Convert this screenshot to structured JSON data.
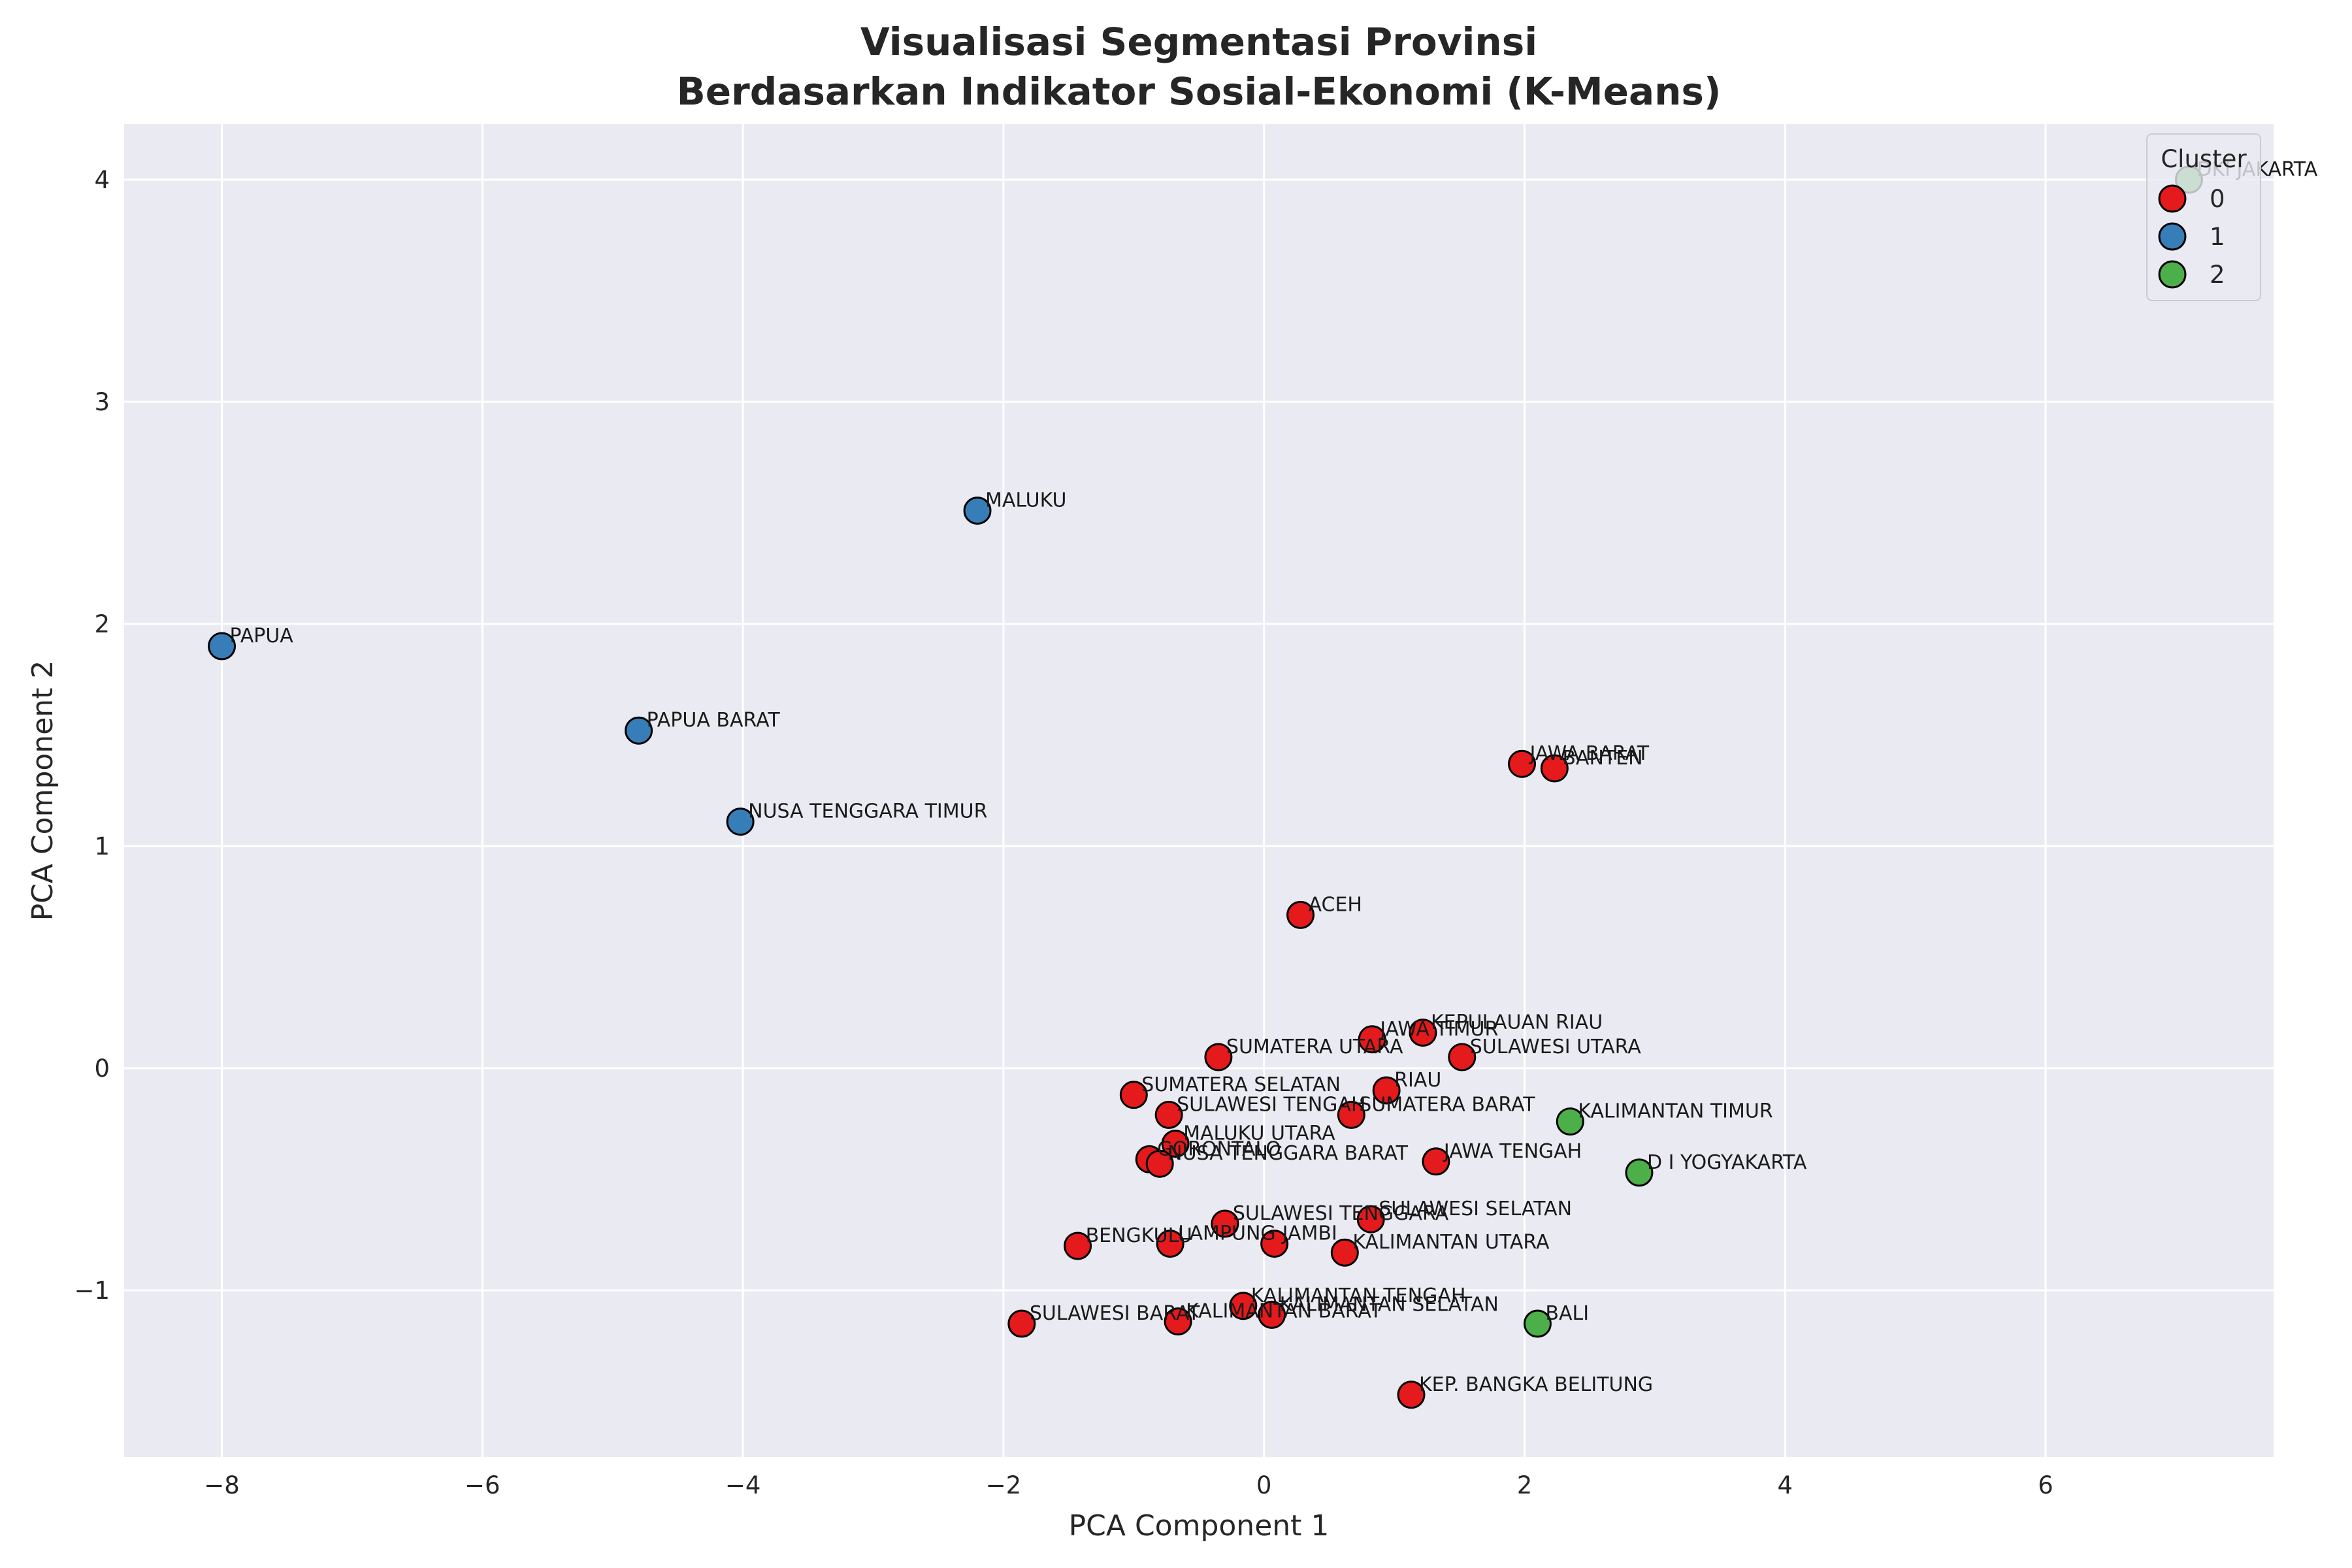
{
  "chart_data": {
    "type": "scatter",
    "title_lines": [
      "Visualisasi Segmentasi Provinsi",
      "Berdasarkan Indikator Sosial-Ekonomi (K-Means)"
    ],
    "xlabel": "PCA Component 1",
    "ylabel": "PCA Component 2",
    "xlim": [
      -8.75,
      7.75
    ],
    "ylim": [
      -1.75,
      4.25
    ],
    "xticks": [
      -8,
      -6,
      -4,
      -2,
      0,
      2,
      4,
      6
    ],
    "yticks": [
      -1,
      0,
      1,
      2,
      3,
      4
    ],
    "xtick_labels": [
      "−8",
      "−6",
      "−4",
      "−2",
      "0",
      "2",
      "4",
      "6"
    ],
    "ytick_labels": [
      "−1",
      "0",
      "1",
      "2",
      "3",
      "4"
    ],
    "grid": true,
    "legend": {
      "title": "Cluster",
      "position": "top-right",
      "entries": [
        {
          "label": "0",
          "color": "#e41a1c"
        },
        {
          "label": "1",
          "color": "#377eb8"
        },
        {
          "label": "2",
          "color": "#4daf4a"
        }
      ]
    },
    "colors": {
      "0": "#e41a1c",
      "1": "#377eb8",
      "2": "#4daf4a",
      "background": "#eaeaf2",
      "grid": "#ffffff"
    },
    "points": [
      {
        "label": "DKI JAKARTA",
        "x": 7.1,
        "y": 4.0,
        "cluster": 2
      },
      {
        "label": "MALUKU",
        "x": -2.2,
        "y": 2.51,
        "cluster": 1
      },
      {
        "label": "PAPUA",
        "x": -8.0,
        "y": 1.9,
        "cluster": 1
      },
      {
        "label": "PAPUA BARAT",
        "x": -4.8,
        "y": 1.52,
        "cluster": 1
      },
      {
        "label": "NUSA TENGGARA TIMUR",
        "x": -4.02,
        "y": 1.11,
        "cluster": 1
      },
      {
        "label": "JAWA BARAT",
        "x": 1.98,
        "y": 1.37,
        "cluster": 0
      },
      {
        "label": "BANTEN",
        "x": 2.23,
        "y": 1.35,
        "cluster": 0
      },
      {
        "label": "ACEH",
        "x": 0.28,
        "y": 0.69,
        "cluster": 0
      },
      {
        "label": "JAWA TIMUR",
        "x": 0.83,
        "y": 0.13,
        "cluster": 0
      },
      {
        "label": "KEPULAUAN RIAU",
        "x": 1.22,
        "y": 0.16,
        "cluster": 0
      },
      {
        "label": "SULAWESI UTARA",
        "x": 1.52,
        "y": 0.05,
        "cluster": 0
      },
      {
        "label": "SUMATERA UTARA",
        "x": -0.35,
        "y": 0.05,
        "cluster": 0
      },
      {
        "label": "SUMATERA SELATAN",
        "x": -1.0,
        "y": -0.12,
        "cluster": 0
      },
      {
        "label": "RIAU",
        "x": 0.94,
        "y": -0.1,
        "cluster": 0
      },
      {
        "label": "SULAWESI TENGAH",
        "x": -0.73,
        "y": -0.21,
        "cluster": 0
      },
      {
        "label": "SUMATERA BARAT",
        "x": 0.67,
        "y": -0.21,
        "cluster": 0
      },
      {
        "label": "KALIMANTAN TIMUR",
        "x": 2.35,
        "y": -0.24,
        "cluster": 2
      },
      {
        "label": "MALUKU UTARA",
        "x": -0.68,
        "y": -0.34,
        "cluster": 0
      },
      {
        "label": "GORONTALO",
        "x": -0.88,
        "y": -0.41,
        "cluster": 0
      },
      {
        "label": "NUSA TENGGARA BARAT",
        "x": -0.8,
        "y": -0.43,
        "cluster": 0
      },
      {
        "label": "JAWA TENGAH",
        "x": 1.32,
        "y": -0.42,
        "cluster": 0
      },
      {
        "label": "D I YOGYAKARTA",
        "x": 2.88,
        "y": -0.47,
        "cluster": 2
      },
      {
        "label": "SULAWESI TENGGARA",
        "x": -0.3,
        "y": -0.7,
        "cluster": 0
      },
      {
        "label": "SULAWESI SELATAN",
        "x": 0.82,
        "y": -0.68,
        "cluster": 0
      },
      {
        "label": "BENGKULU",
        "x": -1.43,
        "y": -0.8,
        "cluster": 0
      },
      {
        "label": "LAMPUNG",
        "x": -0.72,
        "y": -0.79,
        "cluster": 0
      },
      {
        "label": "JAMBI",
        "x": 0.08,
        "y": -0.79,
        "cluster": 0
      },
      {
        "label": "KALIMANTAN UTARA",
        "x": 0.62,
        "y": -0.83,
        "cluster": 0
      },
      {
        "label": "KALIMANTAN TENGAH",
        "x": -0.16,
        "y": -1.07,
        "cluster": 0
      },
      {
        "label": "KALIMANTAN SELATAN",
        "x": 0.06,
        "y": -1.11,
        "cluster": 0
      },
      {
        "label": "SULAWESI BARAT",
        "x": -1.86,
        "y": -1.15,
        "cluster": 0
      },
      {
        "label": "KALIMANTAN BARAT",
        "x": -0.66,
        "y": -1.14,
        "cluster": 0
      },
      {
        "label": "BALI",
        "x": 2.1,
        "y": -1.15,
        "cluster": 2
      },
      {
        "label": "KEP. BANGKA BELITUNG",
        "x": 1.13,
        "y": -1.47,
        "cluster": 0
      }
    ]
  }
}
